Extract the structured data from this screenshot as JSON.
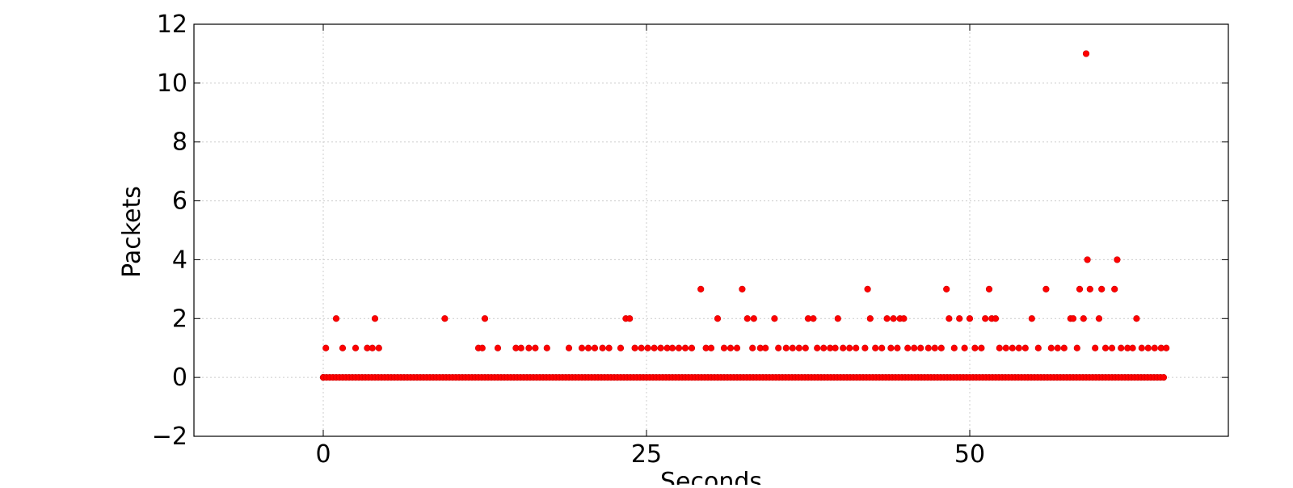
{
  "chart_data": {
    "type": "scatter",
    "title": "",
    "xlabel": "Seconds",
    "ylabel": "Packets",
    "xlim": [
      -10,
      70
    ],
    "ylim": [
      -2,
      12
    ],
    "xticks": [
      0,
      25,
      50
    ],
    "yticks": [
      -2,
      0,
      2,
      4,
      6,
      8,
      10,
      12
    ],
    "xtick_labels": [
      "0",
      "25",
      "50"
    ],
    "ytick_labels": [
      "−2",
      "0",
      "2",
      "4",
      "6",
      "8",
      "10",
      "12"
    ],
    "grid": true,
    "marker_color": "#ff0000",
    "series": [
      {
        "points": [
          {
            "x": 0.0,
            "y": 0
          },
          {
            "x": 0.2,
            "y": 1
          },
          {
            "x": 1.0,
            "y": 2
          },
          {
            "x": 1.5,
            "y": 1
          },
          {
            "x": 2.5,
            "y": 1
          },
          {
            "x": 3.4,
            "y": 1
          },
          {
            "x": 3.8,
            "y": 1
          },
          {
            "x": 4.0,
            "y": 2
          },
          {
            "x": 4.3,
            "y": 1
          },
          {
            "x": 9.4,
            "y": 2
          },
          {
            "x": 12.0,
            "y": 1
          },
          {
            "x": 12.3,
            "y": 1
          },
          {
            "x": 12.5,
            "y": 2
          },
          {
            "x": 13.5,
            "y": 1
          },
          {
            "x": 14.9,
            "y": 1
          },
          {
            "x": 15.3,
            "y": 1
          },
          {
            "x": 15.9,
            "y": 1
          },
          {
            "x": 16.4,
            "y": 1
          },
          {
            "x": 17.3,
            "y": 1
          },
          {
            "x": 19.0,
            "y": 1
          },
          {
            "x": 20.0,
            "y": 1
          },
          {
            "x": 20.5,
            "y": 1
          },
          {
            "x": 21.0,
            "y": 1
          },
          {
            "x": 21.6,
            "y": 1
          },
          {
            "x": 22.1,
            "y": 1
          },
          {
            "x": 23.0,
            "y": 1
          },
          {
            "x": 23.4,
            "y": 2
          },
          {
            "x": 23.7,
            "y": 2
          },
          {
            "x": 24.1,
            "y": 1
          },
          {
            "x": 24.6,
            "y": 1
          },
          {
            "x": 25.1,
            "y": 1
          },
          {
            "x": 25.6,
            "y": 1
          },
          {
            "x": 26.1,
            "y": 1
          },
          {
            "x": 26.6,
            "y": 1
          },
          {
            "x": 27.0,
            "y": 1
          },
          {
            "x": 27.5,
            "y": 1
          },
          {
            "x": 28.0,
            "y": 1
          },
          {
            "x": 28.5,
            "y": 1
          },
          {
            "x": 29.2,
            "y": 3
          },
          {
            "x": 29.6,
            "y": 1
          },
          {
            "x": 30.0,
            "y": 1
          },
          {
            "x": 30.5,
            "y": 2
          },
          {
            "x": 31.0,
            "y": 1
          },
          {
            "x": 31.5,
            "y": 1
          },
          {
            "x": 32.0,
            "y": 1
          },
          {
            "x": 32.4,
            "y": 3
          },
          {
            "x": 32.8,
            "y": 2
          },
          {
            "x": 33.2,
            "y": 1
          },
          {
            "x": 33.3,
            "y": 2
          },
          {
            "x": 33.8,
            "y": 1
          },
          {
            "x": 34.2,
            "y": 1
          },
          {
            "x": 34.9,
            "y": 2
          },
          {
            "x": 35.2,
            "y": 1
          },
          {
            "x": 35.8,
            "y": 1
          },
          {
            "x": 36.3,
            "y": 1
          },
          {
            "x": 36.8,
            "y": 1
          },
          {
            "x": 37.3,
            "y": 1
          },
          {
            "x": 37.5,
            "y": 2
          },
          {
            "x": 37.9,
            "y": 2
          },
          {
            "x": 38.2,
            "y": 1
          },
          {
            "x": 38.7,
            "y": 1
          },
          {
            "x": 39.2,
            "y": 1
          },
          {
            "x": 39.6,
            "y": 1
          },
          {
            "x": 39.8,
            "y": 2
          },
          {
            "x": 40.2,
            "y": 1
          },
          {
            "x": 40.7,
            "y": 1
          },
          {
            "x": 41.2,
            "y": 1
          },
          {
            "x": 41.9,
            "y": 1
          },
          {
            "x": 42.1,
            "y": 3
          },
          {
            "x": 42.3,
            "y": 2
          },
          {
            "x": 42.7,
            "y": 1
          },
          {
            "x": 43.2,
            "y": 1
          },
          {
            "x": 43.6,
            "y": 2
          },
          {
            "x": 43.9,
            "y": 1
          },
          {
            "x": 44.1,
            "y": 2
          },
          {
            "x": 44.4,
            "y": 1
          },
          {
            "x": 44.6,
            "y": 2
          },
          {
            "x": 44.9,
            "y": 2
          },
          {
            "x": 45.2,
            "y": 1
          },
          {
            "x": 45.7,
            "y": 1
          },
          {
            "x": 46.2,
            "y": 1
          },
          {
            "x": 46.8,
            "y": 1
          },
          {
            "x": 47.3,
            "y": 1
          },
          {
            "x": 47.8,
            "y": 1
          },
          {
            "x": 48.2,
            "y": 3
          },
          {
            "x": 48.4,
            "y": 2
          },
          {
            "x": 48.8,
            "y": 1
          },
          {
            "x": 49.2,
            "y": 2
          },
          {
            "x": 49.6,
            "y": 1
          },
          {
            "x": 50.0,
            "y": 2
          },
          {
            "x": 50.4,
            "y": 1
          },
          {
            "x": 50.9,
            "y": 1
          },
          {
            "x": 51.2,
            "y": 2
          },
          {
            "x": 51.5,
            "y": 3
          },
          {
            "x": 51.7,
            "y": 2
          },
          {
            "x": 52.0,
            "y": 2
          },
          {
            "x": 52.3,
            "y": 1
          },
          {
            "x": 52.8,
            "y": 1
          },
          {
            "x": 53.3,
            "y": 1
          },
          {
            "x": 53.8,
            "y": 1
          },
          {
            "x": 54.3,
            "y": 1
          },
          {
            "x": 54.8,
            "y": 2
          },
          {
            "x": 55.3,
            "y": 1
          },
          {
            "x": 55.9,
            "y": 3
          },
          {
            "x": 56.3,
            "y": 1
          },
          {
            "x": 56.8,
            "y": 1
          },
          {
            "x": 57.3,
            "y": 1
          },
          {
            "x": 57.8,
            "y": 2
          },
          {
            "x": 58.0,
            "y": 2
          },
          {
            "x": 58.3,
            "y": 1
          },
          {
            "x": 58.5,
            "y": 3
          },
          {
            "x": 58.8,
            "y": 2
          },
          {
            "x": 59.0,
            "y": 11
          },
          {
            "x": 59.1,
            "y": 4
          },
          {
            "x": 59.3,
            "y": 3
          },
          {
            "x": 59.7,
            "y": 1
          },
          {
            "x": 60.0,
            "y": 2
          },
          {
            "x": 60.2,
            "y": 3
          },
          {
            "x": 60.5,
            "y": 1
          },
          {
            "x": 61.0,
            "y": 1
          },
          {
            "x": 61.2,
            "y": 3
          },
          {
            "x": 61.4,
            "y": 4
          },
          {
            "x": 61.7,
            "y": 1
          },
          {
            "x": 62.2,
            "y": 1
          },
          {
            "x": 62.6,
            "y": 1
          },
          {
            "x": 62.9,
            "y": 2
          },
          {
            "x": 63.3,
            "y": 1
          },
          {
            "x": 63.8,
            "y": 1
          },
          {
            "x": 64.3,
            "y": 1
          },
          {
            "x": 64.8,
            "y": 1
          },
          {
            "x": 65.2,
            "y": 1
          }
        ]
      }
    ]
  }
}
